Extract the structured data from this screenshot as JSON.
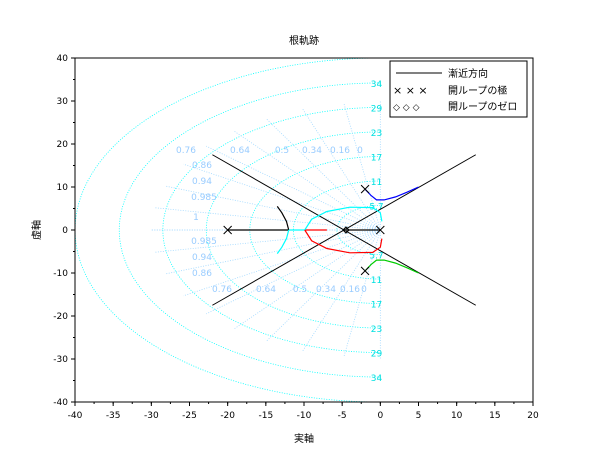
{
  "chart_data": {
    "type": "line",
    "title": "根軌跡",
    "xlabel": "実軸",
    "ylabel": "虚軸",
    "xlim": [
      -40,
      20
    ],
    "ylim": [
      -40,
      40
    ],
    "xticks": [
      -40,
      -35,
      -30,
      -25,
      -20,
      -15,
      -10,
      -5,
      0,
      5,
      10,
      15,
      20
    ],
    "yticks": [
      -40,
      -30,
      -20,
      -10,
      0,
      10,
      20,
      30,
      40
    ],
    "legend": {
      "position": "top-right",
      "entries": [
        "漸近方向",
        "開ループの極",
        "開ループのゼロ"
      ]
    },
    "grid": {
      "wn_labels": [
        "5.7",
        "11",
        "17",
        "23",
        "29",
        "34"
      ],
      "wn_values": [
        5.7,
        11.4,
        17.1,
        22.8,
        28.5,
        34.2,
        40
      ],
      "zeta_values": [
        0,
        0.16,
        0.34,
        0.5,
        0.64,
        0.76,
        0.86,
        0.94,
        0.985,
        1
      ],
      "zeta_labels": [
        "0",
        "0.16",
        "0.34",
        "0.5",
        "0.64",
        "0.76",
        "0.86",
        "0.94",
        "0.985",
        "1"
      ]
    },
    "poles": [
      [
        -20,
        0
      ],
      [
        0,
        0
      ],
      [
        -2,
        9.5
      ],
      [
        -2,
        -9.5
      ]
    ],
    "zeros": [
      [
        -4.5,
        0
      ]
    ],
    "asymptotes": [
      {
        "from": [
          -22,
          17.5
        ],
        "to": [
          12.5,
          -17.5
        ]
      },
      {
        "from": [
          -22,
          -17.5
        ],
        "to": [
          12.5,
          17.5
        ]
      }
    ],
    "series": [
      {
        "name": "branch-real-left",
        "color": "#000000",
        "points": [
          [
            -20,
            0
          ],
          [
            -12,
            0
          ]
        ]
      },
      {
        "name": "branch-break-up",
        "color": "#000000",
        "points": [
          [
            -12,
            0
          ],
          [
            -12.3,
            2
          ],
          [
            -12.9,
            4
          ],
          [
            -13.5,
            5.5
          ]
        ]
      },
      {
        "name": "branch-break-down",
        "color": "#00ffff",
        "points": [
          [
            -12,
            0
          ],
          [
            -12.3,
            -2
          ],
          [
            -12.9,
            -4
          ],
          [
            -13.5,
            -5.5
          ]
        ]
      },
      {
        "name": "branch-axis-cyan",
        "color": "#00ffff",
        "points": [
          [
            -12,
            0
          ],
          [
            -9.9,
            0
          ]
        ]
      },
      {
        "name": "branch-axis-red",
        "color": "#ff0000",
        "points": [
          [
            -9.9,
            0
          ],
          [
            -7,
            0
          ]
        ]
      },
      {
        "name": "branch-loop-upper",
        "color": "#00ffff",
        "points": [
          [
            -9.9,
            0
          ],
          [
            -9,
            2.5
          ],
          [
            -7,
            4.3
          ],
          [
            -4,
            5.3
          ],
          [
            -1,
            5.2
          ],
          [
            0,
            4
          ],
          [
            0.2,
            2
          ]
        ]
      },
      {
        "name": "branch-loop-lower",
        "color": "#ff0000",
        "points": [
          [
            -9.9,
            0
          ],
          [
            -9,
            -2.5
          ],
          [
            -7,
            -4.3
          ],
          [
            -4,
            -5.3
          ],
          [
            -1,
            -5.2
          ],
          [
            0,
            -4
          ],
          [
            0.2,
            -2
          ]
        ]
      },
      {
        "name": "branch-origin",
        "color": "#000000",
        "points": [
          [
            0,
            0
          ],
          [
            -4.5,
            0
          ]
        ]
      },
      {
        "name": "branch-upper-pole",
        "color": "#0000ff",
        "points": [
          [
            -2,
            9.5
          ],
          [
            -1.2,
            8
          ],
          [
            -0.5,
            7
          ],
          [
            0.5,
            7
          ],
          [
            2,
            7.7
          ],
          [
            3.5,
            8.8
          ],
          [
            5,
            10
          ]
        ]
      },
      {
        "name": "branch-lower-pole",
        "color": "#00cc00",
        "points": [
          [
            -2,
            -9.5
          ],
          [
            -1.2,
            -8
          ],
          [
            -0.5,
            -7
          ],
          [
            0.5,
            -7
          ],
          [
            2,
            -7.7
          ],
          [
            3.5,
            -8.8
          ],
          [
            5,
            -10
          ]
        ]
      }
    ],
    "colors": {
      "grid": "#00ffff",
      "ray": "#a0d8ff",
      "label": "#99ccff"
    }
  }
}
